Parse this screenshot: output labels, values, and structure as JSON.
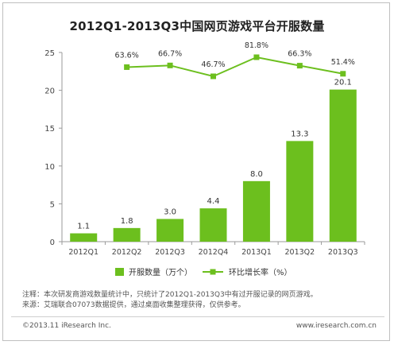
{
  "chart_data": {
    "type": "bar",
    "title": "2012Q1-2013Q3中国网页游戏平台开服数量",
    "categories": [
      "2012Q1",
      "2012Q2",
      "2012Q3",
      "2012Q4",
      "2013Q1",
      "2013Q2",
      "2013Q3"
    ],
    "series": [
      {
        "name": "开服数量（万个）",
        "kind": "bar",
        "values": [
          1.1,
          1.8,
          3.0,
          4.4,
          8.0,
          13.3,
          20.1
        ],
        "labels": [
          "1.1",
          "1.8",
          "3.0",
          "4.4",
          "8.0",
          "13.3",
          "20.1"
        ],
        "color": "#6cbf1e"
      },
      {
        "name": "环比增长率（%）",
        "kind": "line",
        "values": [
          null,
          63.6,
          66.7,
          46.7,
          81.8,
          66.3,
          51.4
        ],
        "labels": [
          null,
          "63.6%",
          "66.7%",
          "46.7%",
          "81.8%",
          "66.3%",
          "51.4%"
        ],
        "color": "#6cbf1e"
      }
    ],
    "ylim": [
      0,
      25
    ],
    "yticks": [
      "0",
      "5",
      "10",
      "15",
      "20",
      "25"
    ],
    "xlabel": "",
    "ylabel": "",
    "grid": false,
    "legend_position": "bottom"
  },
  "notes": {
    "line1": "注释：本次研发商游戏数量统计中，只统计了2012Q1-2013Q3中有过开服记录的网页游戏。",
    "line2": "来源：艾瑞联合07073数据提供，通过桌面收集整理获得，仅供参考。"
  },
  "footer": {
    "copyright": "©2013.11 iResearch Inc.",
    "website": "www.iresearch.com.cn"
  }
}
